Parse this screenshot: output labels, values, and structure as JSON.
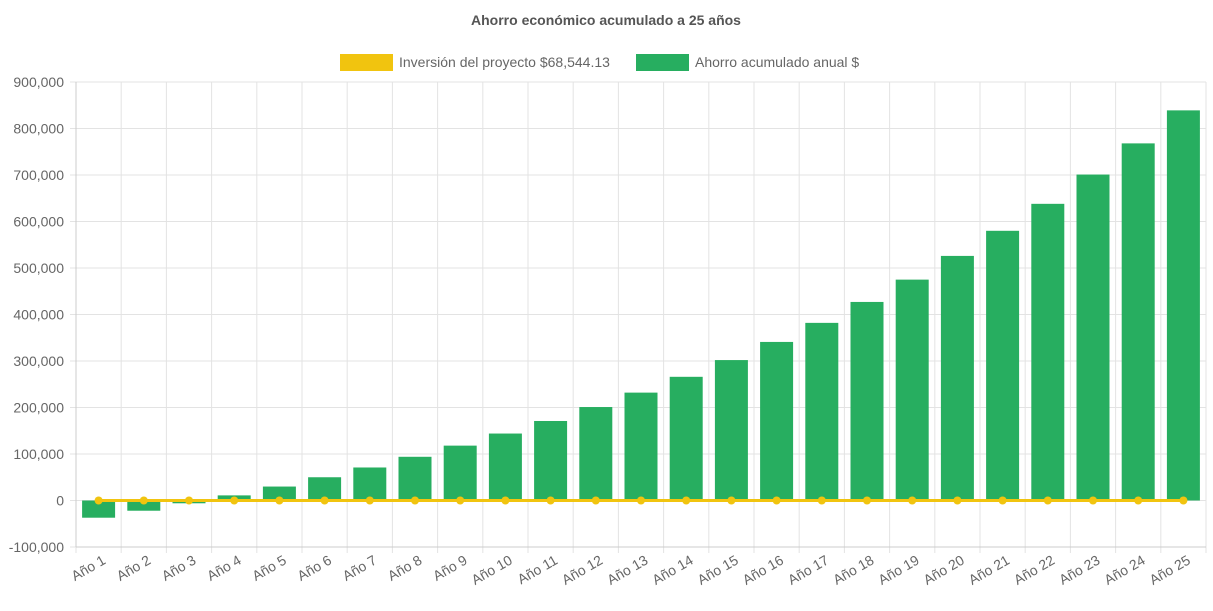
{
  "chart_data": {
    "type": "bar",
    "title": "Ahorro económico acumulado a 25 años",
    "categories": [
      "Año 1",
      "Año 2",
      "Año 3",
      "Año 4",
      "Año 5",
      "Año 6",
      "Año 7",
      "Año 8",
      "Año 9",
      "Año 10",
      "Año 11",
      "Año 12",
      "Año 13",
      "Año 14",
      "Año 15",
      "Año 16",
      "Año 17",
      "Año 18",
      "Año 19",
      "Año 20",
      "Año 21",
      "Año 22",
      "Año 23",
      "Año 24",
      "Año 25"
    ],
    "y_ticks": [
      "-100,000",
      "0",
      "100,000",
      "200,000",
      "300,000",
      "400,000",
      "500,000",
      "600,000",
      "700,000",
      "800,000",
      "900,000"
    ],
    "ylim": [
      -100000,
      900000
    ],
    "grid": true,
    "legend_position": "top",
    "series": [
      {
        "name": "Inversión del proyecto $68,544.13",
        "type": "line",
        "color": "#f1c40f",
        "values": [
          0,
          0,
          0,
          0,
          0,
          0,
          0,
          0,
          0,
          0,
          0,
          0,
          0,
          0,
          0,
          0,
          0,
          0,
          0,
          0,
          0,
          0,
          0,
          0,
          0
        ]
      },
      {
        "name": "Ahorro acumulado anual $",
        "type": "bar",
        "color": "#27ae60",
        "values": [
          -37000,
          -22000,
          -6000,
          11000,
          30000,
          50000,
          71000,
          94000,
          118000,
          144000,
          171000,
          201000,
          232000,
          266000,
          302000,
          341000,
          382000,
          427000,
          475000,
          526000,
          580000,
          638000,
          701000,
          768000,
          839000
        ]
      }
    ]
  }
}
